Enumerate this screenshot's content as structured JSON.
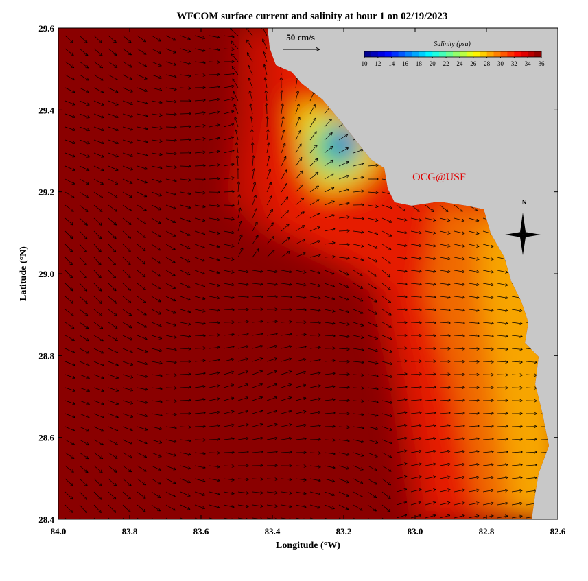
{
  "header": {
    "title": "WFCOM surface current and salinity at hour 1 on 02/19/2023"
  },
  "map": {
    "xlabel": "Longitude (°W)",
    "ylabel": "Latitude (°N)",
    "xlim": [
      84.0,
      82.6
    ],
    "ylim": [
      28.4,
      29.6
    ],
    "xticks": [
      {
        "value": 84.0,
        "label": "84.0"
      },
      83.8,
      83.6,
      83.4,
      83.2,
      {
        "value": 83.0,
        "label": "83.0"
      },
      82.8,
      82.6
    ],
    "yticks": [
      28.4,
      28.6,
      28.8,
      {
        "value": 29.0,
        "label": "29.0"
      },
      29.2,
      29.4,
      29.6
    ],
    "scale_label": "50 cm/s",
    "credit": "OCG@USF",
    "north_label": "N"
  },
  "colorbar": {
    "title": "Salinity (psu)",
    "lim": [
      10,
      36
    ],
    "ticks": [
      10,
      12,
      14,
      16,
      18,
      20,
      22,
      24,
      26,
      28,
      30,
      32,
      34,
      36
    ]
  }
}
